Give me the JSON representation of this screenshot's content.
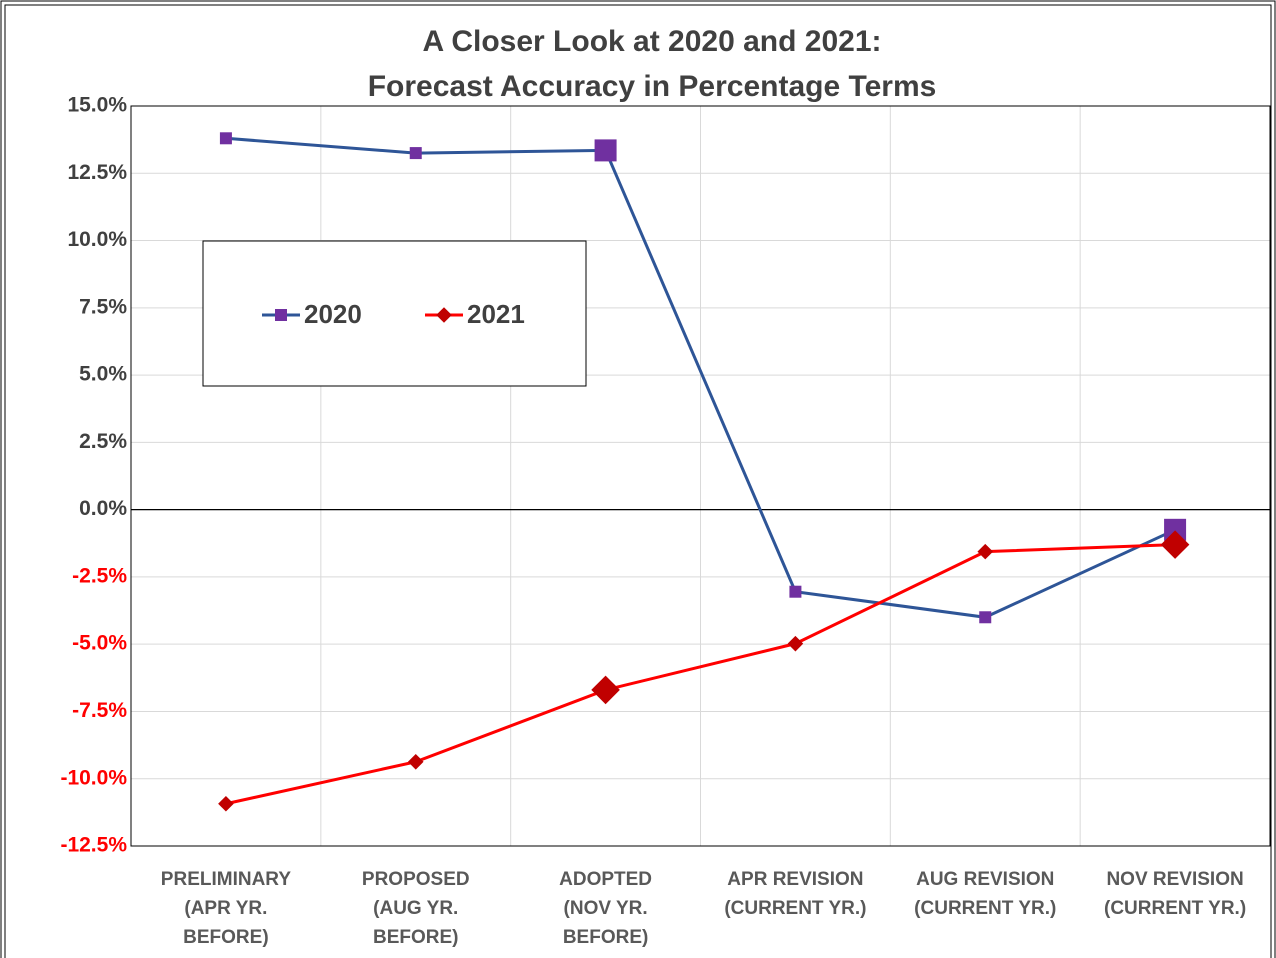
{
  "chart_data": {
    "type": "line",
    "title": [
      "A Closer Look at 2020 and 2021:",
      "Forecast Accuracy in Percentage Terms"
    ],
    "categories": [
      "PRELIMINARY\n(APR YR.\nBEFORE)",
      "PROPOSED\n(AUG YR.\nBEFORE)",
      "ADOPTED\n(NOV YR.\nBEFORE)",
      "APR REVISION\n(CURRENT YR.)",
      "AUG REVISION\n(CURRENT YR.)",
      "NOV REVISION\n(CURRENT YR.)"
    ],
    "series": [
      {
        "name": "2020",
        "color": "#2e5597",
        "marker_color": "#7030a0",
        "marker": "square",
        "values": [
          13.8,
          13.25,
          13.35,
          -3.05,
          -4.0,
          -0.75
        ]
      },
      {
        "name": "2021",
        "color": "#ff0000",
        "marker_color": "#c00000",
        "marker": "diamond",
        "values": [
          -10.93,
          -9.37,
          -6.7,
          -4.98,
          -1.56,
          -1.3
        ]
      }
    ],
    "highlight": [
      2,
      5
    ],
    "ylim": [
      -12.5,
      15
    ],
    "yticks": [
      {
        "value": -12.5,
        "label": "-12.5%"
      },
      {
        "value": -10,
        "label": "-10.0%"
      },
      {
        "value": -7.5,
        "label": "-7.5%"
      },
      {
        "value": -5,
        "label": "-5.0%"
      },
      {
        "value": -2.5,
        "label": "-2.5%"
      },
      {
        "value": 0,
        "label": "0.0%"
      },
      {
        "value": 2.5,
        "label": "2.5%"
      },
      {
        "value": 5,
        "label": "5.0%"
      },
      {
        "value": 7.5,
        "label": "7.5%"
      },
      {
        "value": 10,
        "label": "10.0%"
      },
      {
        "value": 12.5,
        "label": "12.5%"
      },
      {
        "value": 15,
        "label": "15.0%"
      }
    ],
    "negative_tick_color": "#ff0000",
    "grid": true,
    "legend": "upper left"
  }
}
